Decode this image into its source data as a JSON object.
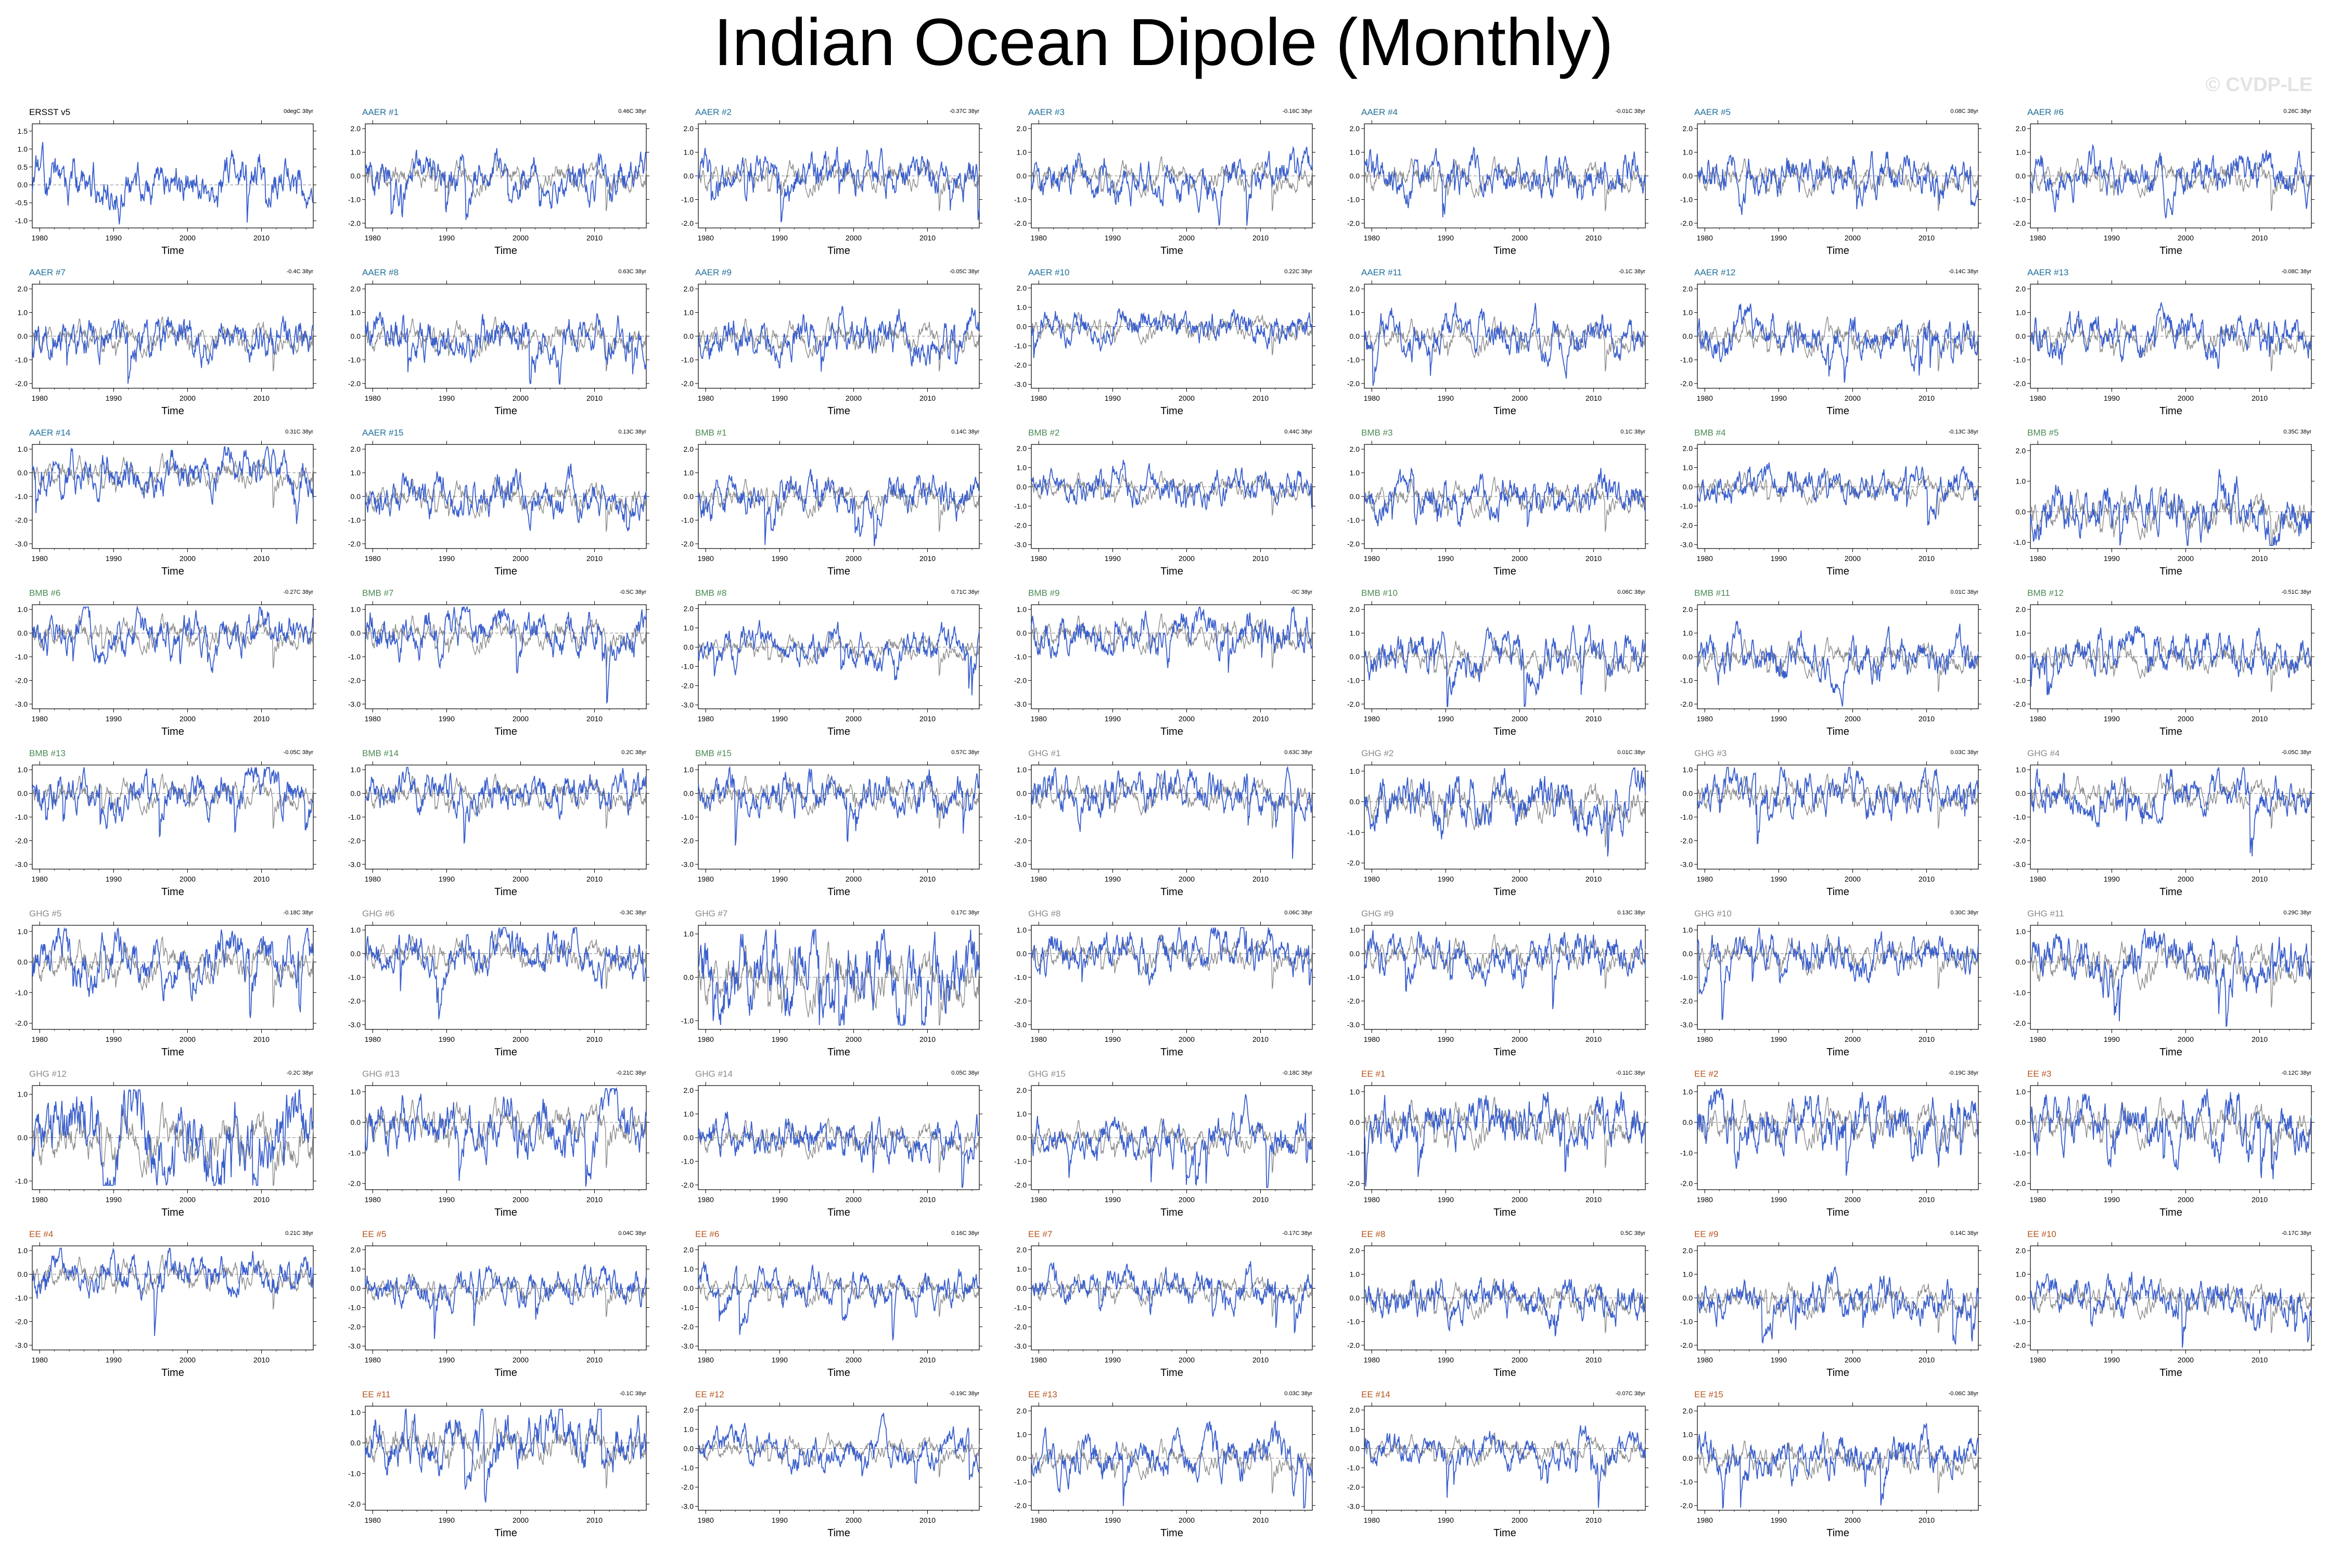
{
  "title": "Indian Ocean Dipole (Monthly)",
  "watermark": "© CVDP-LE",
  "chart_data": {
    "type": "line",
    "x_label": "Time",
    "x_ticks": [
      "1980",
      "1990",
      "2000",
      "2010"
    ],
    "x_range": [
      1979,
      2017
    ],
    "series_colors": {
      "member": "#3a5fcd",
      "observed_overlay": "#8c8c8c",
      "zero_line": "#808080"
    },
    "group_colors": {
      "ERSST": "#000000",
      "AAER": "#1f6f9a",
      "BMB": "#4a8a54",
      "GHG": "#8a8a8a",
      "EE": "#b5541c"
    },
    "panels": [
      {
        "label": "ERSST v5",
        "group": "ERSST",
        "trend": "0degC 38yr",
        "yticks": [
          "1.5",
          "1.0",
          "0.5",
          "0.0",
          "-0.5",
          "-1.0"
        ]
      },
      {
        "label": "AAER #1",
        "group": "AAER",
        "trend": "0.46C 38yr",
        "yticks": [
          "2.0",
          "1.0",
          "0.0",
          "-1.0",
          "-2.0"
        ]
      },
      {
        "label": "AAER #2",
        "group": "AAER",
        "trend": "-0.37C 38yr",
        "yticks": [
          "2.0",
          "1.0",
          "0.0",
          "-1.0",
          "-2.0"
        ]
      },
      {
        "label": "AAER #3",
        "group": "AAER",
        "trend": "-0.16C 38yr",
        "yticks": [
          "2.0",
          "1.0",
          "0.0",
          "-1.0",
          "-2.0"
        ]
      },
      {
        "label": "AAER #4",
        "group": "AAER",
        "trend": "-0.01C 38yr",
        "yticks": [
          "2.0",
          "1.0",
          "0.0",
          "-1.0",
          "-2.0"
        ]
      },
      {
        "label": "AAER #5",
        "group": "AAER",
        "trend": "0.08C 38yr",
        "yticks": [
          "2.0",
          "1.0",
          "0.0",
          "-1.0",
          "-2.0"
        ]
      },
      {
        "label": "AAER #6",
        "group": "AAER",
        "trend": "0.26C 38yr",
        "yticks": [
          "2.0",
          "1.0",
          "0.0",
          "-1.0",
          "-2.0"
        ]
      },
      {
        "label": "AAER #7",
        "group": "AAER",
        "trend": "-0.4C 38yr",
        "yticks": [
          "2.0",
          "1.0",
          "0.0",
          "-1.0",
          "-2.0"
        ]
      },
      {
        "label": "AAER #8",
        "group": "AAER",
        "trend": "0.63C 38yr",
        "yticks": [
          "2.0",
          "1.0",
          "0.0",
          "-1.0",
          "-2.0"
        ]
      },
      {
        "label": "AAER #9",
        "group": "AAER",
        "trend": "-0.05C 38yr",
        "yticks": [
          "2.0",
          "1.0",
          "0.0",
          "-1.0",
          "-2.0"
        ]
      },
      {
        "label": "AAER #10",
        "group": "AAER",
        "trend": "0.22C 38yr",
        "yticks": [
          "2.0",
          "1.0",
          "0.0",
          "-1.0",
          "-2.0",
          "-3.0"
        ]
      },
      {
        "label": "AAER #11",
        "group": "AAER",
        "trend": "-0.1C 38yr",
        "yticks": [
          "2.0",
          "1.0",
          "0.0",
          "-1.0",
          "-2.0"
        ]
      },
      {
        "label": "AAER #12",
        "group": "AAER",
        "trend": "-0.14C 38yr",
        "yticks": [
          "2.0",
          "1.0",
          "0.0",
          "-1.0",
          "-2.0"
        ]
      },
      {
        "label": "AAER #13",
        "group": "AAER",
        "trend": "-0.08C 38yr",
        "yticks": [
          "2.0",
          "1.0",
          "0.0",
          "-1.0",
          "-2.0"
        ]
      },
      {
        "label": "AAER #14",
        "group": "AAER",
        "trend": "0.31C 38yr",
        "yticks": [
          "1.0",
          "0.0",
          "-1.0",
          "-2.0",
          "-3.0"
        ]
      },
      {
        "label": "AAER #15",
        "group": "AAER",
        "trend": "0.13C 38yr",
        "yticks": [
          "2.0",
          "1.0",
          "0.0",
          "-1.0",
          "-2.0"
        ]
      },
      {
        "label": "BMB #1",
        "group": "BMB",
        "trend": "0.14C 38yr",
        "yticks": [
          "2.0",
          "1.0",
          "0.0",
          "-1.0",
          "-2.0"
        ]
      },
      {
        "label": "BMB #2",
        "group": "BMB",
        "trend": "0.44C 38yr",
        "yticks": [
          "2.0",
          "1.0",
          "0.0",
          "-1.0",
          "-2.0",
          "-3.0"
        ]
      },
      {
        "label": "BMB #3",
        "group": "BMB",
        "trend": "0.1C 38yr",
        "yticks": [
          "2.0",
          "1.0",
          "0.0",
          "-1.0",
          "-2.0"
        ]
      },
      {
        "label": "BMB #4",
        "group": "BMB",
        "trend": "-0.13C 38yr",
        "yticks": [
          "2.0",
          "1.0",
          "0.0",
          "-1.0",
          "-2.0",
          "-3.0"
        ]
      },
      {
        "label": "BMB #5",
        "group": "BMB",
        "trend": "0.35C 38yr",
        "yticks": [
          "2.0",
          "1.0",
          "0.0",
          "-1.0"
        ]
      },
      {
        "label": "BMB #6",
        "group": "BMB",
        "trend": "-0.27C 38yr",
        "yticks": [
          "1.0",
          "0.0",
          "-1.0",
          "-2.0",
          "-3.0"
        ]
      },
      {
        "label": "BMB #7",
        "group": "BMB",
        "trend": "-0.5C 38yr",
        "yticks": [
          "1.0",
          "0.0",
          "-1.0",
          "-2.0",
          "-3.0"
        ]
      },
      {
        "label": "BMB #8",
        "group": "BMB",
        "trend": "0.71C 38yr",
        "yticks": [
          "2.0",
          "1.0",
          "0.0",
          "-1.0",
          "-2.0",
          "-3.0"
        ]
      },
      {
        "label": "BMB #9",
        "group": "BMB",
        "trend": "-0C 38yr",
        "yticks": [
          "1.0",
          "0.0",
          "-1.0",
          "-2.0",
          "-3.0"
        ]
      },
      {
        "label": "BMB #10",
        "group": "BMB",
        "trend": "0.06C 38yr",
        "yticks": [
          "2.0",
          "1.0",
          "0.0",
          "-1.0",
          "-2.0"
        ]
      },
      {
        "label": "BMB #11",
        "group": "BMB",
        "trend": "0.01C 38yr",
        "yticks": [
          "2.0",
          "1.0",
          "0.0",
          "-1.0",
          "-2.0"
        ]
      },
      {
        "label": "BMB #12",
        "group": "BMB",
        "trend": "-0.51C 38yr",
        "yticks": [
          "2.0",
          "1.0",
          "0.0",
          "-1.0",
          "-2.0"
        ]
      },
      {
        "label": "BMB #13",
        "group": "BMB",
        "trend": "-0.05C 38yr",
        "yticks": [
          "1.0",
          "0.0",
          "-1.0",
          "-2.0",
          "-3.0"
        ]
      },
      {
        "label": "BMB #14",
        "group": "BMB",
        "trend": "0.2C 38yr",
        "yticks": [
          "1.0",
          "0.0",
          "-1.0",
          "-2.0",
          "-3.0"
        ]
      },
      {
        "label": "BMB #15",
        "group": "BMB",
        "trend": "0.57C 38yr",
        "yticks": [
          "1.0",
          "0.0",
          "-1.0",
          "-2.0",
          "-3.0"
        ]
      },
      {
        "label": "GHG #1",
        "group": "GHG",
        "trend": "0.63C 38yr",
        "yticks": [
          "1.0",
          "0.0",
          "-1.0",
          "-2.0",
          "-3.0"
        ]
      },
      {
        "label": "GHG #2",
        "group": "GHG",
        "trend": "0.01C 38yr",
        "yticks": [
          "1.0",
          "0.0",
          "-1.0",
          "-2.0"
        ]
      },
      {
        "label": "GHG #3",
        "group": "GHG",
        "trend": "0.03C 38yr",
        "yticks": [
          "1.0",
          "0.0",
          "-1.0",
          "-2.0",
          "-3.0"
        ]
      },
      {
        "label": "GHG #4",
        "group": "GHG",
        "trend": "-0.05C 38yr",
        "yticks": [
          "1.0",
          "0.0",
          "-1.0",
          "-2.0",
          "-3.0"
        ]
      },
      {
        "label": "GHG #5",
        "group": "GHG",
        "trend": "-0.18C 38yr",
        "yticks": [
          "1.0",
          "0.0",
          "-1.0",
          "-2.0"
        ]
      },
      {
        "label": "GHG #6",
        "group": "GHG",
        "trend": "-0.3C 38yr",
        "yticks": [
          "1.0",
          "0.0",
          "-1.0",
          "-2.0",
          "-3.0"
        ]
      },
      {
        "label": "GHG #7",
        "group": "GHG",
        "trend": "0.17C 38yr",
        "yticks": [
          "1.0",
          "0.0",
          "-1.0"
        ]
      },
      {
        "label": "GHG #8",
        "group": "GHG",
        "trend": "0.06C 38yr",
        "yticks": [
          "1.0",
          "0.0",
          "-1.0",
          "-2.0",
          "-3.0"
        ]
      },
      {
        "label": "GHG #9",
        "group": "GHG",
        "trend": "0.13C 38yr",
        "yticks": [
          "1.0",
          "0.0",
          "-1.0",
          "-2.0",
          "-3.0"
        ]
      },
      {
        "label": "GHG #10",
        "group": "GHG",
        "trend": "0.30C 38yr",
        "yticks": [
          "1.0",
          "0.0",
          "-1.0",
          "-2.0",
          "-3.0"
        ]
      },
      {
        "label": "GHG #11",
        "group": "GHG",
        "trend": "0.29C 38yr",
        "yticks": [
          "1.0",
          "0.0",
          "-1.0",
          "-2.0"
        ]
      },
      {
        "label": "GHG #12",
        "group": "GHG",
        "trend": "-0.2C 38yr",
        "yticks": [
          "1.0",
          "0.0",
          "-1.0"
        ]
      },
      {
        "label": "GHG #13",
        "group": "GHG",
        "trend": "-0.21C 38yr",
        "yticks": [
          "1.0",
          "0.0",
          "-1.0",
          "-2.0"
        ]
      },
      {
        "label": "GHG #14",
        "group": "GHG",
        "trend": "0.05C 38yr",
        "yticks": [
          "2.0",
          "1.0",
          "0.0",
          "-1.0",
          "-2.0"
        ]
      },
      {
        "label": "GHG #15",
        "group": "GHG",
        "trend": "-0.18C 38yr",
        "yticks": [
          "2.0",
          "1.0",
          "0.0",
          "-1.0",
          "-2.0"
        ]
      },
      {
        "label": "EE #1",
        "group": "EE",
        "trend": "-0.11C 38yr",
        "yticks": [
          "1.0",
          "0.0",
          "-1.0",
          "-2.0"
        ]
      },
      {
        "label": "EE #2",
        "group": "EE",
        "trend": "-0.19C 38yr",
        "yticks": [
          "1.0",
          "0.0",
          "-1.0",
          "-2.0"
        ]
      },
      {
        "label": "EE #3",
        "group": "EE",
        "trend": "-0.12C 38yr",
        "yticks": [
          "1.0",
          "0.0",
          "-1.0",
          "-2.0"
        ]
      },
      {
        "label": "EE #4",
        "group": "EE",
        "trend": "0.21C 38yr",
        "yticks": [
          "1.0",
          "0.0",
          "-1.0",
          "-2.0",
          "-3.0"
        ]
      },
      {
        "label": "EE #5",
        "group": "EE",
        "trend": "0.04C 38yr",
        "yticks": [
          "2.0",
          "1.0",
          "0.0",
          "-1.0",
          "-2.0",
          "-3.0"
        ]
      },
      {
        "label": "EE #6",
        "group": "EE",
        "trend": "0.16C 38yr",
        "yticks": [
          "2.0",
          "1.0",
          "0.0",
          "-1.0",
          "-2.0",
          "-3.0"
        ]
      },
      {
        "label": "EE #7",
        "group": "EE",
        "trend": "-0.17C 38yr",
        "yticks": [
          "2.0",
          "1.0",
          "0.0",
          "-1.0",
          "-2.0",
          "-3.0"
        ]
      },
      {
        "label": "EE #8",
        "group": "EE",
        "trend": "0.5C 38yr",
        "yticks": [
          "2.0",
          "1.0",
          "0.0",
          "-1.0",
          "-2.0"
        ]
      },
      {
        "label": "EE #9",
        "group": "EE",
        "trend": "0.14C 38yr",
        "yticks": [
          "2.0",
          "1.0",
          "0.0",
          "-1.0",
          "-2.0"
        ]
      },
      {
        "label": "EE #10",
        "group": "EE",
        "trend": "-0.17C 38yr",
        "yticks": [
          "2.0",
          "1.0",
          "0.0",
          "-1.0",
          "-2.0"
        ]
      },
      {
        "label": "EE #11",
        "group": "EE",
        "trend": "-0.1C 38yr",
        "yticks": [
          "1.0",
          "0.0",
          "-1.0",
          "-2.0"
        ]
      },
      {
        "label": "EE #12",
        "group": "EE",
        "trend": "-0.19C 38yr",
        "yticks": [
          "2.0",
          "1.0",
          "0.0",
          "-1.0",
          "-2.0",
          "-3.0"
        ]
      },
      {
        "label": "EE #13",
        "group": "EE",
        "trend": "0.03C 38yr",
        "yticks": [
          "2.0",
          "1.0",
          "0.0",
          "-1.0",
          "-2.0"
        ]
      },
      {
        "label": "EE #14",
        "group": "EE",
        "trend": "-0.07C 38yr",
        "yticks": [
          "2.0",
          "1.0",
          "0.0",
          "-1.0",
          "-2.0",
          "-3.0"
        ]
      },
      {
        "label": "EE #15",
        "group": "EE",
        "trend": "-0.06C 38yr",
        "yticks": [
          "2.0",
          "1.0",
          "0.0",
          "-1.0",
          "-2.0"
        ]
      }
    ]
  }
}
